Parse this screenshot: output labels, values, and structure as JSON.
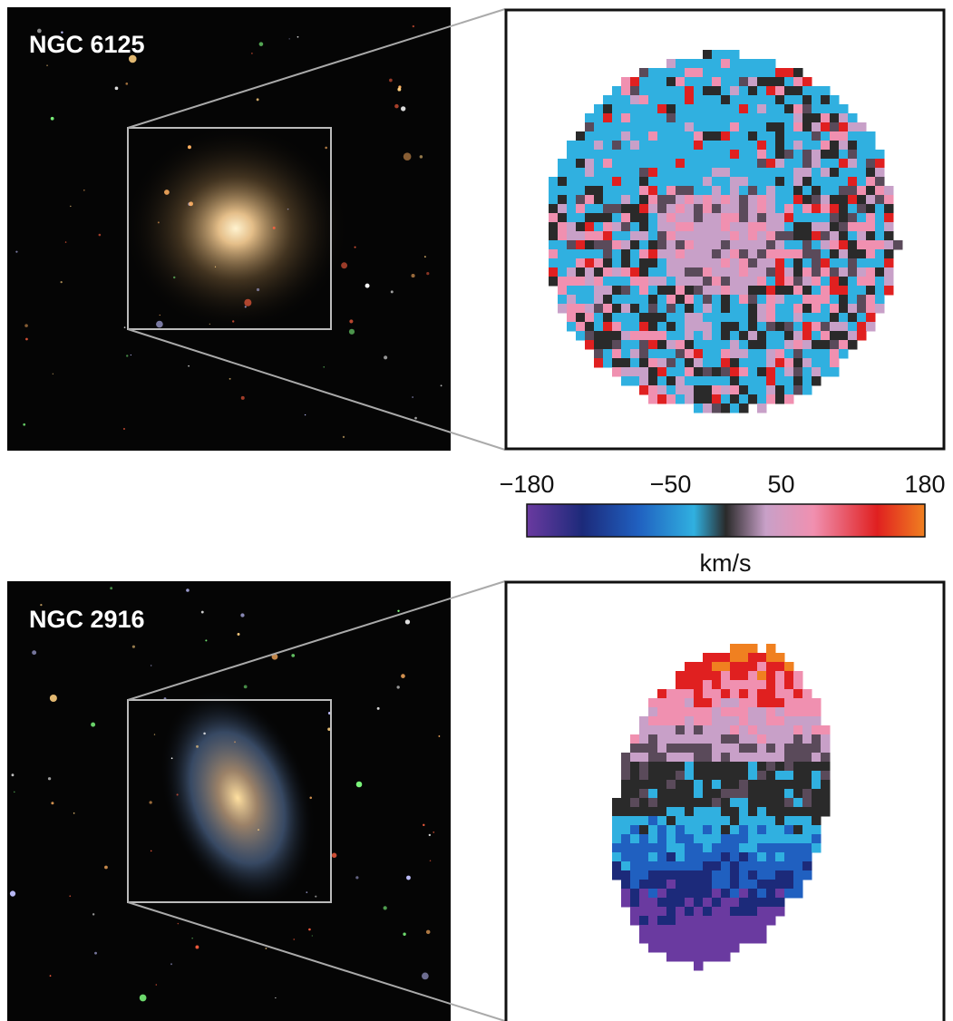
{
  "panels": [
    {
      "label": "NGC 6125"
    },
    {
      "label": "NGC 2916"
    }
  ],
  "colorbar": {
    "lim": [
      -180,
      180
    ],
    "ticks": [
      {
        "value": -180,
        "label": "−180"
      },
      {
        "value": -50,
        "label": "−50"
      },
      {
        "value": 50,
        "label": "50"
      },
      {
        "value": 180,
        "label": "180"
      }
    ],
    "unit": "km/s"
  }
}
